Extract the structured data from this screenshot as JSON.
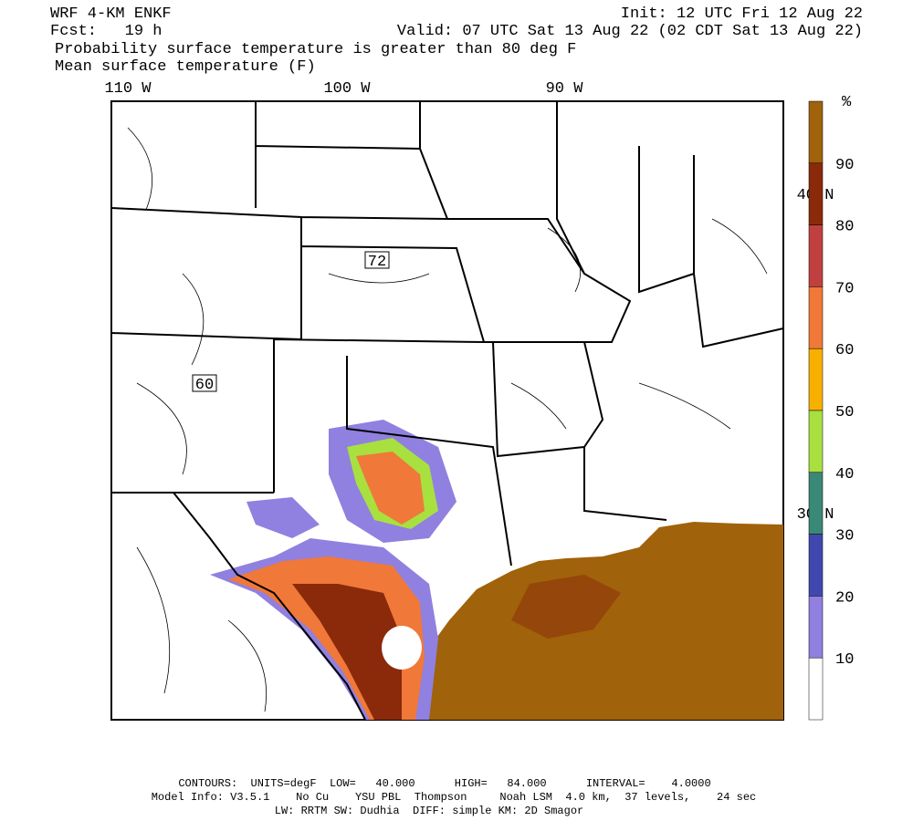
{
  "header": {
    "model": "WRF 4-KM ENKF",
    "forecast": "Fcst:   19 h",
    "init": "Init: 12 UTC Fri 12 Aug 22",
    "valid": "Valid: 07 UTC Sat 13 Aug 22 (02 CDT Sat 13 Aug 22)",
    "title": "Probability surface temperature is greater than 80 deg F",
    "subtitle": "Mean surface temperature (F)"
  },
  "map": {
    "lon_labels": [
      "110 W",
      "100 W",
      "90 W"
    ],
    "lat_labels": [
      "40 N",
      "30 N"
    ],
    "contour_labels": [
      "72",
      "60"
    ]
  },
  "colorbar": {
    "unit": "%",
    "labels": [
      "90",
      "80",
      "70",
      "60",
      "50",
      "40",
      "30",
      "20",
      "10"
    ],
    "colors": [
      "#a0620a",
      "#8a2a0a",
      "#c04040",
      "#f07838",
      "#f8b000",
      "#a8e040",
      "#3a8878",
      "#4048b0",
      "#9080e0",
      "#ffffff"
    ]
  },
  "footer": {
    "line1": "CONTOURS:  UNITS=degF  LOW=   40.000      HIGH=   84.000      INTERVAL=    4.0000",
    "line2": "Model Info: V3.5.1    No Cu    YSU PBL  Thompson     Noah LSM  4.0 km,  37 levels,    24 sec",
    "line3": "LW: RRTM SW: Dudhia  DIFF: simple KM: 2D Smagor"
  }
}
